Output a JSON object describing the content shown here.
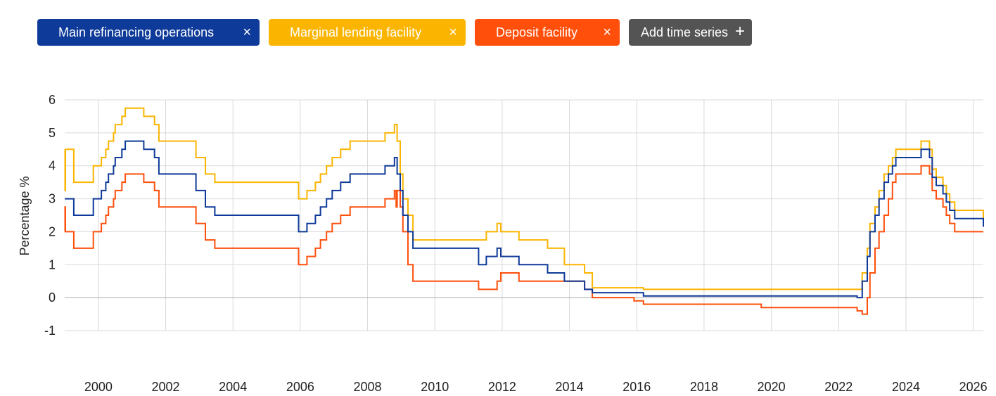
{
  "filters": [
    {
      "label": "Main refinancing operations",
      "close_icon": "×",
      "color": "#0e3a99"
    },
    {
      "label": "Marginal lending facility",
      "close_icon": "×",
      "color": "#fbb500"
    },
    {
      "label": "Deposit facility",
      "close_icon": "×",
      "color": "#ff4f0b"
    }
  ],
  "add_series": {
    "label": "Add time series",
    "icon": "plus-icon",
    "icon_glyph": "+",
    "color": "#545454"
  },
  "chart_data": {
    "type": "line",
    "title": "",
    "xlabel": "",
    "ylabel": "Percentage %",
    "xlim": [
      1999.0,
      2026.3
    ],
    "ylim": [
      -1,
      6
    ],
    "x_ticks": [
      "2000",
      "2002",
      "2004",
      "2006",
      "2008",
      "2010",
      "2012",
      "2014",
      "2016",
      "2018",
      "2020",
      "2022",
      "2024",
      "2026"
    ],
    "y_ticks": [
      "6",
      "5",
      "4",
      "3",
      "2",
      "1",
      "0",
      "-1"
    ],
    "grid": true,
    "legend": "top, as removable chips",
    "series": [
      {
        "name": "Main refinancing operations",
        "color": "#0e3a99",
        "step": true,
        "x": [
          1999.0,
          1999.27,
          1999.85,
          2000.09,
          2000.22,
          2000.3,
          2000.45,
          2000.5,
          2000.7,
          2000.8,
          2001.35,
          2001.67,
          2001.8,
          2002.9,
          2003.18,
          2003.46,
          2005.95,
          2006.2,
          2006.45,
          2006.6,
          2006.78,
          2006.95,
          2007.2,
          2007.48,
          2008.52,
          2008.8,
          2008.88,
          2008.97,
          2009.05,
          2009.2,
          2009.35,
          2011.3,
          2011.53,
          2011.85,
          2011.96,
          2012.5,
          2013.35,
          2013.85,
          2014.45,
          2014.68,
          2016.2,
          2022.55,
          2022.7,
          2022.85,
          2022.93,
          2023.08,
          2023.2,
          2023.35,
          2023.48,
          2023.6,
          2023.7,
          2024.45,
          2024.7,
          2024.78,
          2024.9,
          2025.1,
          2025.2,
          2025.3,
          2025.45,
          2026.3
        ],
        "y": [
          3.0,
          2.5,
          3.0,
          3.25,
          3.5,
          3.75,
          4.0,
          4.25,
          4.5,
          4.75,
          4.5,
          4.25,
          3.75,
          3.25,
          2.75,
          2.5,
          2.0,
          2.25,
          2.5,
          2.75,
          3.0,
          3.25,
          3.5,
          3.75,
          4.0,
          4.25,
          3.75,
          3.25,
          2.5,
          2.0,
          1.5,
          1.0,
          1.25,
          1.5,
          1.25,
          1.0,
          0.75,
          0.5,
          0.25,
          0.15,
          0.05,
          0.0,
          0.5,
          1.25,
          2.0,
          2.5,
          3.0,
          3.5,
          3.75,
          4.0,
          4.25,
          4.5,
          4.25,
          3.65,
          3.4,
          3.15,
          2.9,
          2.65,
          2.4,
          2.15
        ]
      },
      {
        "name": "Marginal lending facility",
        "color": "#fbb500",
        "step": true,
        "x": [
          1999.0,
          1999.01,
          1999.02,
          1999.05,
          1999.27,
          1999.85,
          2000.09,
          2000.22,
          2000.3,
          2000.45,
          2000.5,
          2000.7,
          2000.8,
          2001.35,
          2001.67,
          2001.8,
          2002.9,
          2003.18,
          2003.46,
          2005.95,
          2006.2,
          2006.45,
          2006.6,
          2006.78,
          2006.95,
          2007.2,
          2007.48,
          2008.52,
          2008.8,
          2008.88,
          2008.97,
          2009.05,
          2009.2,
          2009.35,
          2011.3,
          2011.53,
          2011.85,
          2011.96,
          2012.5,
          2013.35,
          2013.85,
          2014.45,
          2014.68,
          2016.2,
          2022.55,
          2022.7,
          2022.85,
          2022.93,
          2023.08,
          2023.2,
          2023.35,
          2023.48,
          2023.6,
          2023.7,
          2024.45,
          2024.7,
          2024.78,
          2024.9,
          2025.1,
          2025.2,
          2025.3,
          2025.45,
          2026.3
        ],
        "y": [
          4.5,
          3.25,
          4.5,
          4.5,
          3.5,
          4.0,
          4.25,
          4.5,
          4.75,
          5.0,
          5.25,
          5.5,
          5.75,
          5.5,
          5.25,
          4.75,
          4.25,
          3.75,
          3.5,
          3.0,
          3.25,
          3.5,
          3.75,
          4.0,
          4.25,
          4.5,
          4.75,
          5.0,
          5.25,
          4.75,
          3.75,
          3.0,
          2.5,
          1.75,
          1.75,
          2.0,
          2.25,
          2.0,
          1.75,
          1.5,
          1.0,
          0.75,
          0.3,
          0.25,
          0.25,
          0.75,
          1.5,
          2.25,
          2.75,
          3.25,
          3.75,
          4.0,
          4.25,
          4.5,
          4.75,
          4.5,
          3.9,
          3.65,
          3.4,
          3.15,
          2.9,
          2.65,
          2.4
        ]
      },
      {
        "name": "Deposit facility",
        "color": "#ff4f0b",
        "step": true,
        "x": [
          1999.0,
          1999.01,
          1999.02,
          1999.05,
          1999.27,
          1999.85,
          2000.09,
          2000.22,
          2000.3,
          2000.45,
          2000.5,
          2000.7,
          2000.8,
          2001.35,
          2001.67,
          2001.8,
          2002.9,
          2003.18,
          2003.46,
          2005.95,
          2006.2,
          2006.45,
          2006.6,
          2006.78,
          2006.95,
          2007.2,
          2007.48,
          2008.52,
          2008.8,
          2008.85,
          2008.88,
          2008.97,
          2009.05,
          2009.2,
          2009.35,
          2011.3,
          2011.53,
          2011.85,
          2011.96,
          2012.5,
          2014.45,
          2014.68,
          2015.92,
          2016.2,
          2019.7,
          2022.55,
          2022.7,
          2022.85,
          2022.93,
          2023.08,
          2023.2,
          2023.35,
          2023.48,
          2023.6,
          2023.7,
          2024.45,
          2024.7,
          2024.78,
          2024.9,
          2025.1,
          2025.2,
          2025.3,
          2025.45,
          2026.3
        ],
        "y": [
          2.0,
          2.75,
          2.0,
          2.0,
          1.5,
          2.0,
          2.25,
          2.5,
          2.75,
          3.0,
          3.25,
          3.5,
          3.75,
          3.5,
          3.25,
          2.75,
          2.25,
          1.75,
          1.5,
          1.0,
          1.25,
          1.5,
          1.75,
          2.0,
          2.25,
          2.5,
          2.75,
          3.0,
          3.25,
          2.75,
          3.25,
          2.75,
          2.0,
          1.0,
          0.5,
          0.25,
          0.25,
          0.5,
          0.75,
          0.5,
          0.25,
          0.0,
          -0.1,
          -0.2,
          -0.3,
          -0.4,
          -0.5,
          0.0,
          0.75,
          1.5,
          2.0,
          2.5,
          3.0,
          3.5,
          3.75,
          4.0,
          3.75,
          3.25,
          3.0,
          2.75,
          2.5,
          2.25,
          2.0,
          2.0
        ]
      }
    ]
  }
}
